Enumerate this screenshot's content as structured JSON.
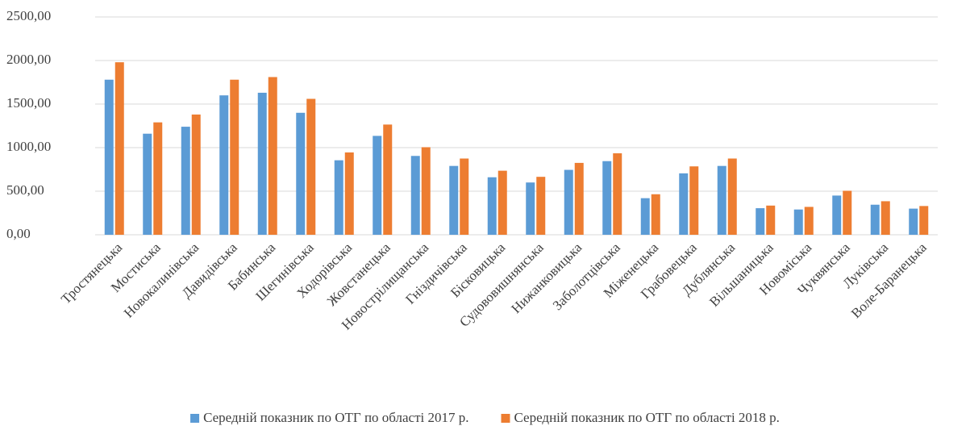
{
  "chart_data": {
    "type": "bar",
    "categories": [
      "Тростянецька",
      "Мостиська",
      "Новокалинівська",
      "Давидівська",
      "Бабинська",
      "Шегинівська",
      "Ходорівська",
      "Жовстанецька",
      "Новострілищанська",
      "Гніздичівська",
      "Бісковицька",
      "Судововишнянська",
      "Нижанковицька",
      "Заболотцівська",
      "Міженецька",
      "Грабовецька",
      "Дублянська",
      "Вільшаницька",
      "Новоміська",
      "Чуквянська",
      "Луківська",
      "Воле-Баранецька"
    ],
    "series": [
      {
        "name": "Середній показник по ОТГ по області 2017 р.",
        "color": "#5b9bd5",
        "values": [
          1780,
          1160,
          1240,
          1600,
          1630,
          1400,
          855,
          1135,
          905,
          790,
          660,
          600,
          745,
          845,
          420,
          705,
          790,
          305,
          290,
          450,
          345,
          300
        ]
      },
      {
        "name": "Середній показник по ОТГ по області 2018 р.",
        "color": "#ed7d31",
        "values": [
          1980,
          1290,
          1380,
          1780,
          1810,
          1560,
          945,
          1265,
          1005,
          875,
          735,
          665,
          825,
          935,
          465,
          785,
          875,
          335,
          320,
          505,
          385,
          330
        ]
      }
    ],
    "ylim": [
      0,
      2500
    ],
    "yticks": [
      {
        "value": 0,
        "label": "0,00"
      },
      {
        "value": 500,
        "label": "500,00"
      },
      {
        "value": 1000,
        "label": "1000,00"
      },
      {
        "value": 1500,
        "label": "1500,00"
      },
      {
        "value": 2000,
        "label": "2000,00"
      },
      {
        "value": 2500,
        "label": "2500,00"
      }
    ],
    "grid": true,
    "legend": "bottom"
  }
}
